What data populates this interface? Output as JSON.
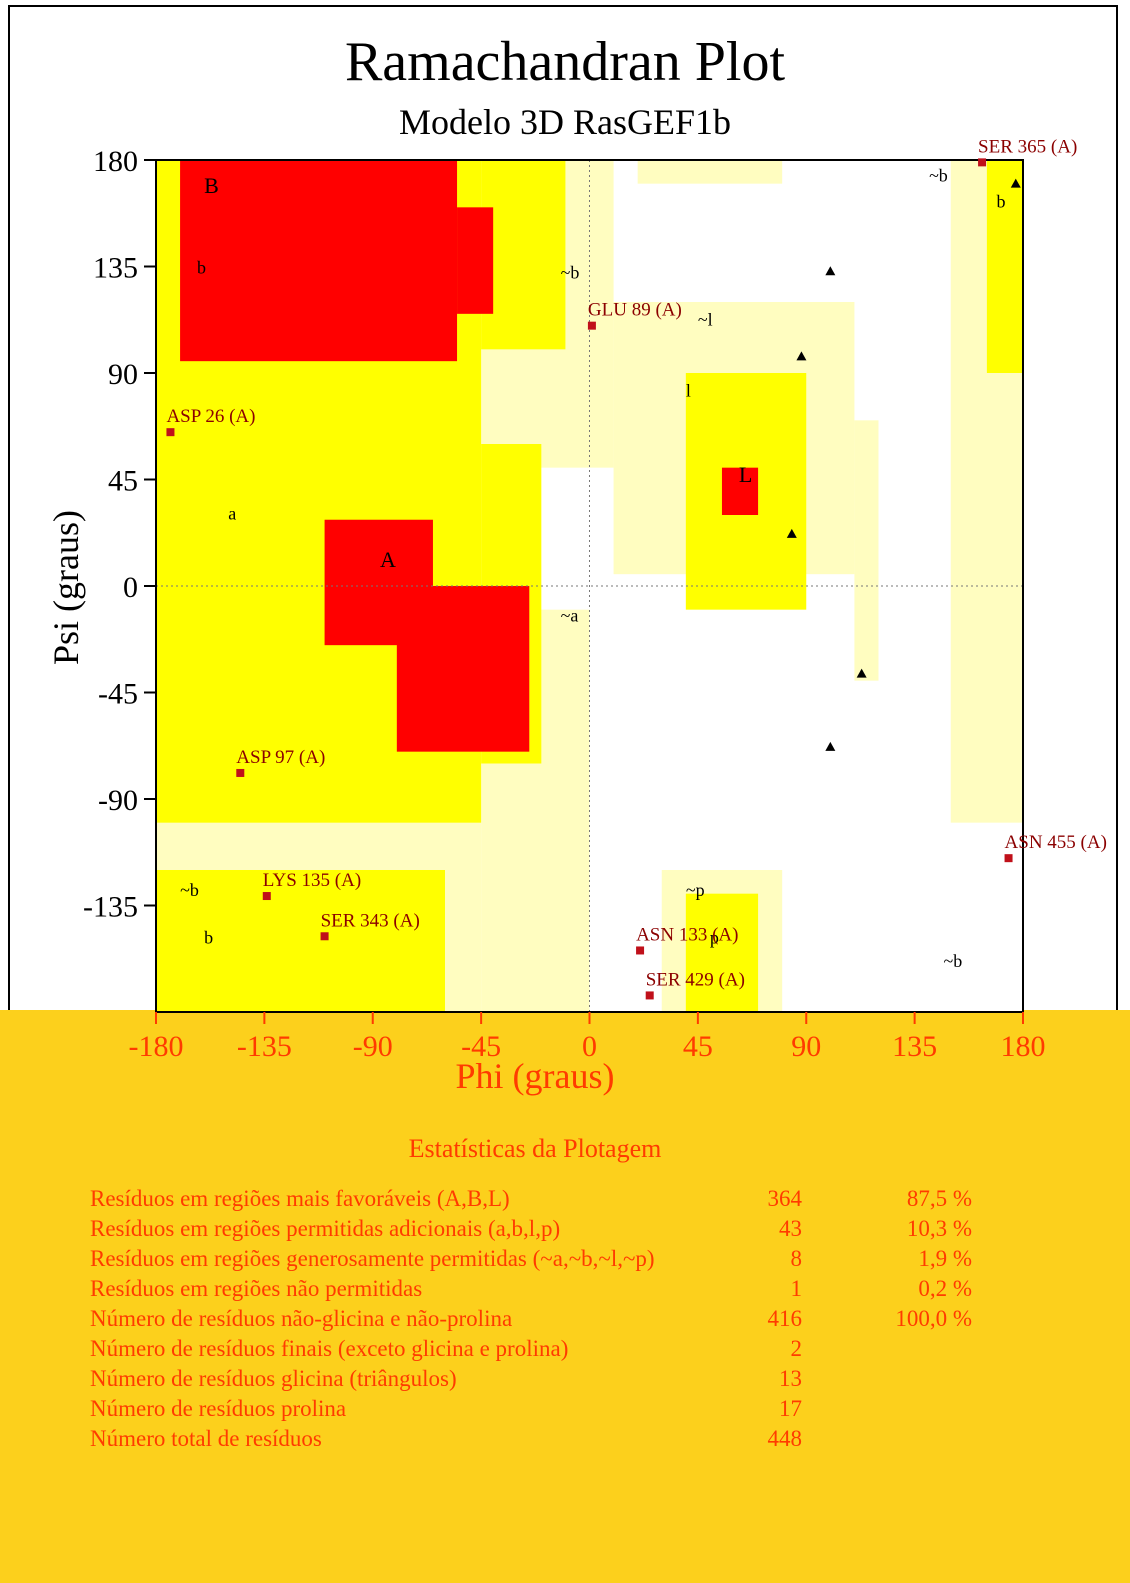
{
  "title": "Ramachandran Plot",
  "subtitle": "Modelo 3D RasGEF1b",
  "chart_data": {
    "type": "scatter",
    "title": "Ramachandran Plot",
    "subtitle": "Modelo 3D RasGEF1b",
    "xlabel": "Phi (graus)",
    "ylabel": "Psi (graus)",
    "xlim": [
      -180,
      180
    ],
    "ylim": [
      -180,
      180
    ],
    "x_ticks": [
      "-180",
      "-135",
      "-90",
      "-45",
      "0",
      "45",
      "90",
      "135",
      "180"
    ],
    "y_ticks": [
      "180",
      "135",
      "90",
      "45",
      "0",
      "-45",
      "-90",
      "-135"
    ],
    "grid": "dotted lines at phi=0 and psi=0",
    "region_colors": {
      "most_favoured": "#ff0000",
      "additional_allowed": "#ffff00",
      "generously_allowed": "#fffdc0",
      "disallowed": "#ffffff"
    },
    "region_labels": [
      {
        "text": "B",
        "phi": -160,
        "psi": 166
      },
      {
        "text": "b",
        "phi": -163,
        "psi": 132
      },
      {
        "text": "a",
        "phi": -150,
        "psi": 28
      },
      {
        "text": "A",
        "phi": -87,
        "psi": 8
      },
      {
        "text": "~b",
        "phi": -12,
        "psi": 130
      },
      {
        "text": "~l",
        "phi": 45,
        "psi": 110
      },
      {
        "text": "l",
        "phi": 40,
        "psi": 80
      },
      {
        "text": "L",
        "phi": 62,
        "psi": 44
      },
      {
        "text": "~a",
        "phi": -12,
        "psi": -15
      },
      {
        "text": "~b",
        "phi": 141,
        "psi": 171
      },
      {
        "text": "b",
        "phi": 169,
        "psi": 160
      },
      {
        "text": "~b",
        "phi": -170,
        "psi": -131
      },
      {
        "text": "b",
        "phi": -160,
        "psi": -151
      },
      {
        "text": "~p",
        "phi": 40,
        "psi": -131
      },
      {
        "text": "p",
        "phi": 50,
        "psi": -151
      },
      {
        "text": "~b",
        "phi": 147,
        "psi": -161
      }
    ],
    "labelled_residues": [
      {
        "label": "SER 365 (A)",
        "phi": 163,
        "psi": 179
      },
      {
        "label": "GLU 89 (A)",
        "phi": 1,
        "psi": 110
      },
      {
        "label": "ASP 26 (A)",
        "phi": -174,
        "psi": 65
      },
      {
        "label": "ASP 97 (A)",
        "phi": -145,
        "psi": -79
      },
      {
        "label": "ASN 455 (A)",
        "phi": 174,
        "psi": -115
      },
      {
        "label": "LYS 135 (A)",
        "phi": -134,
        "psi": -131
      },
      {
        "label": "SER 343 (A)",
        "phi": -110,
        "psi": -148
      },
      {
        "label": "ASN 133 (A)",
        "phi": 21,
        "psi": -154
      },
      {
        "label": "SER 429 (A)",
        "phi": 25,
        "psi": -173
      }
    ],
    "glycine_points": [
      {
        "phi": 177,
        "psi": 170
      },
      {
        "phi": 100,
        "psi": 133
      },
      {
        "phi": 88,
        "psi": 97
      },
      {
        "phi": 84,
        "psi": 22
      },
      {
        "phi": 113,
        "psi": -37
      },
      {
        "phi": 100,
        "psi": -68
      }
    ]
  },
  "stats": {
    "title": "Estatísticas da Plotagem",
    "rows": [
      {
        "label": "Resíduos em regiões mais favoráveis (A,B,L)",
        "count": "364",
        "pct": "87,5 %"
      },
      {
        "label": "Resíduos em regiões permitidas adicionais (a,b,l,p)",
        "count": "43",
        "pct": "10,3 %"
      },
      {
        "label": "Resíduos em regiões generosamente permitidas (~a,~b,~l,~p)",
        "count": "8",
        "pct": "1,9 %"
      },
      {
        "label": "Resíduos em regiões não permitidas",
        "count": "1",
        "pct": "0,2 %"
      },
      {
        "label": "Número de resíduos não-glicina e não-prolina",
        "count": "416",
        "pct": "100,0 %"
      },
      {
        "label": "Número de resíduos finais (exceto glicina e prolina)",
        "count": "2",
        "pct": ""
      },
      {
        "label": "Número de resíduos glicina (triângulos)",
        "count": "13",
        "pct": ""
      },
      {
        "label": "Número de resíduos prolina",
        "count": "17",
        "pct": ""
      },
      {
        "label": "Número total de resíduos",
        "count": "448",
        "pct": ""
      }
    ]
  }
}
